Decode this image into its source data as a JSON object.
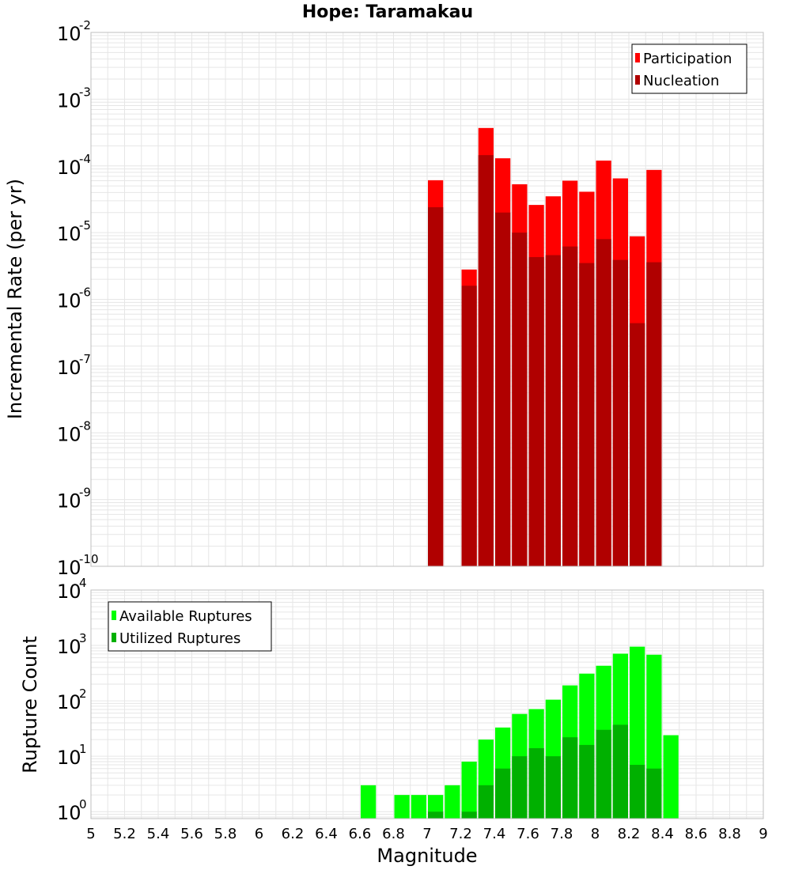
{
  "title": "Hope: Taramakau",
  "colors": {
    "participation": "#ff0000",
    "nucleation": "#b00000",
    "available": "#00ff00",
    "utilized": "#00b000",
    "grid": "#e6e6e6",
    "frame": "#bfbfbf"
  },
  "chart_data": [
    {
      "type": "bar",
      "panel": "rates",
      "ylabel": "Incremental Rate (per yr)",
      "yscale": "log",
      "ylim": [
        1e-10,
        0.01
      ],
      "xlim": [
        5,
        9
      ],
      "y_ticks": [
        {
          "base": "10",
          "exp": "-10"
        },
        {
          "base": "10",
          "exp": "-9"
        },
        {
          "base": "10",
          "exp": "-8"
        },
        {
          "base": "10",
          "exp": "-7"
        },
        {
          "base": "10",
          "exp": "-6"
        },
        {
          "base": "10",
          "exp": "-5"
        },
        {
          "base": "10",
          "exp": "-4"
        },
        {
          "base": "10",
          "exp": "-3"
        },
        {
          "base": "10",
          "exp": "-2"
        }
      ],
      "legend": [
        {
          "name": "Participation",
          "color_key": "participation"
        },
        {
          "name": "Nucleation",
          "color_key": "nucleation"
        }
      ],
      "legend_position": "top-right",
      "series": [
        {
          "name": "Participation",
          "x": [
            7.05,
            7.25,
            7.35,
            7.45,
            7.55,
            7.65,
            7.75,
            7.85,
            7.95,
            8.05,
            8.15,
            8.25,
            8.35
          ],
          "values": [
            6.1e-05,
            2.8e-06,
            0.00037,
            0.00013,
            5.3e-05,
            2.6e-05,
            3.5e-05,
            6e-05,
            4.1e-05,
            0.00012,
            6.5e-05,
            8.8e-06,
            8.7e-05
          ]
        },
        {
          "name": "Nucleation",
          "x": [
            7.05,
            7.25,
            7.35,
            7.45,
            7.55,
            7.65,
            7.75,
            7.85,
            7.95,
            8.05,
            8.15,
            8.25,
            8.35
          ],
          "values": [
            2.4e-05,
            1.6e-06,
            0.000145,
            2e-05,
            1e-05,
            4.3e-06,
            4.6e-06,
            6.2e-06,
            3.5e-06,
            8e-06,
            3.9e-06,
            4.4e-07,
            3.6e-06
          ]
        }
      ]
    },
    {
      "type": "bar",
      "panel": "counts",
      "xlabel": "Magnitude",
      "ylabel": "Rupture Count",
      "yscale": "log",
      "ylim": [
        0.75,
        10000
      ],
      "xlim": [
        5,
        9
      ],
      "x_ticks": [
        "5",
        "5.2",
        "5.4",
        "5.6",
        "5.8",
        "6",
        "6.2",
        "6.4",
        "6.6",
        "6.8",
        "7",
        "7.2",
        "7.4",
        "7.6",
        "7.8",
        "8",
        "8.2",
        "8.4",
        "8.6",
        "8.8",
        "9"
      ],
      "y_ticks": [
        {
          "base": "10",
          "exp": "0"
        },
        {
          "base": "10",
          "exp": "1"
        },
        {
          "base": "10",
          "exp": "2"
        },
        {
          "base": "10",
          "exp": "3"
        },
        {
          "base": "10",
          "exp": "4"
        }
      ],
      "legend": [
        {
          "name": "Available Ruptures",
          "color_key": "available"
        },
        {
          "name": "Utilized Ruptures",
          "color_key": "utilized"
        }
      ],
      "legend_position": "top-left",
      "series": [
        {
          "name": "Available Ruptures",
          "x": [
            6.65,
            6.85,
            6.95,
            7.05,
            7.15,
            7.25,
            7.35,
            7.45,
            7.55,
            7.65,
            7.75,
            7.85,
            7.95,
            8.05,
            8.15,
            8.25,
            8.35,
            8.45
          ],
          "values": [
            3,
            2,
            2,
            2,
            3,
            8,
            20,
            33,
            58,
            71,
            105,
            190,
            310,
            430,
            710,
            950,
            680,
            24
          ]
        },
        {
          "name": "Utilized Ruptures",
          "x": [
            7.05,
            7.25,
            7.35,
            7.45,
            7.55,
            7.65,
            7.75,
            7.85,
            7.95,
            8.05,
            8.15,
            8.25,
            8.35
          ],
          "values": [
            1,
            1,
            3,
            6,
            10,
            14,
            10,
            22,
            16,
            30,
            37,
            7,
            6
          ]
        }
      ]
    }
  ]
}
